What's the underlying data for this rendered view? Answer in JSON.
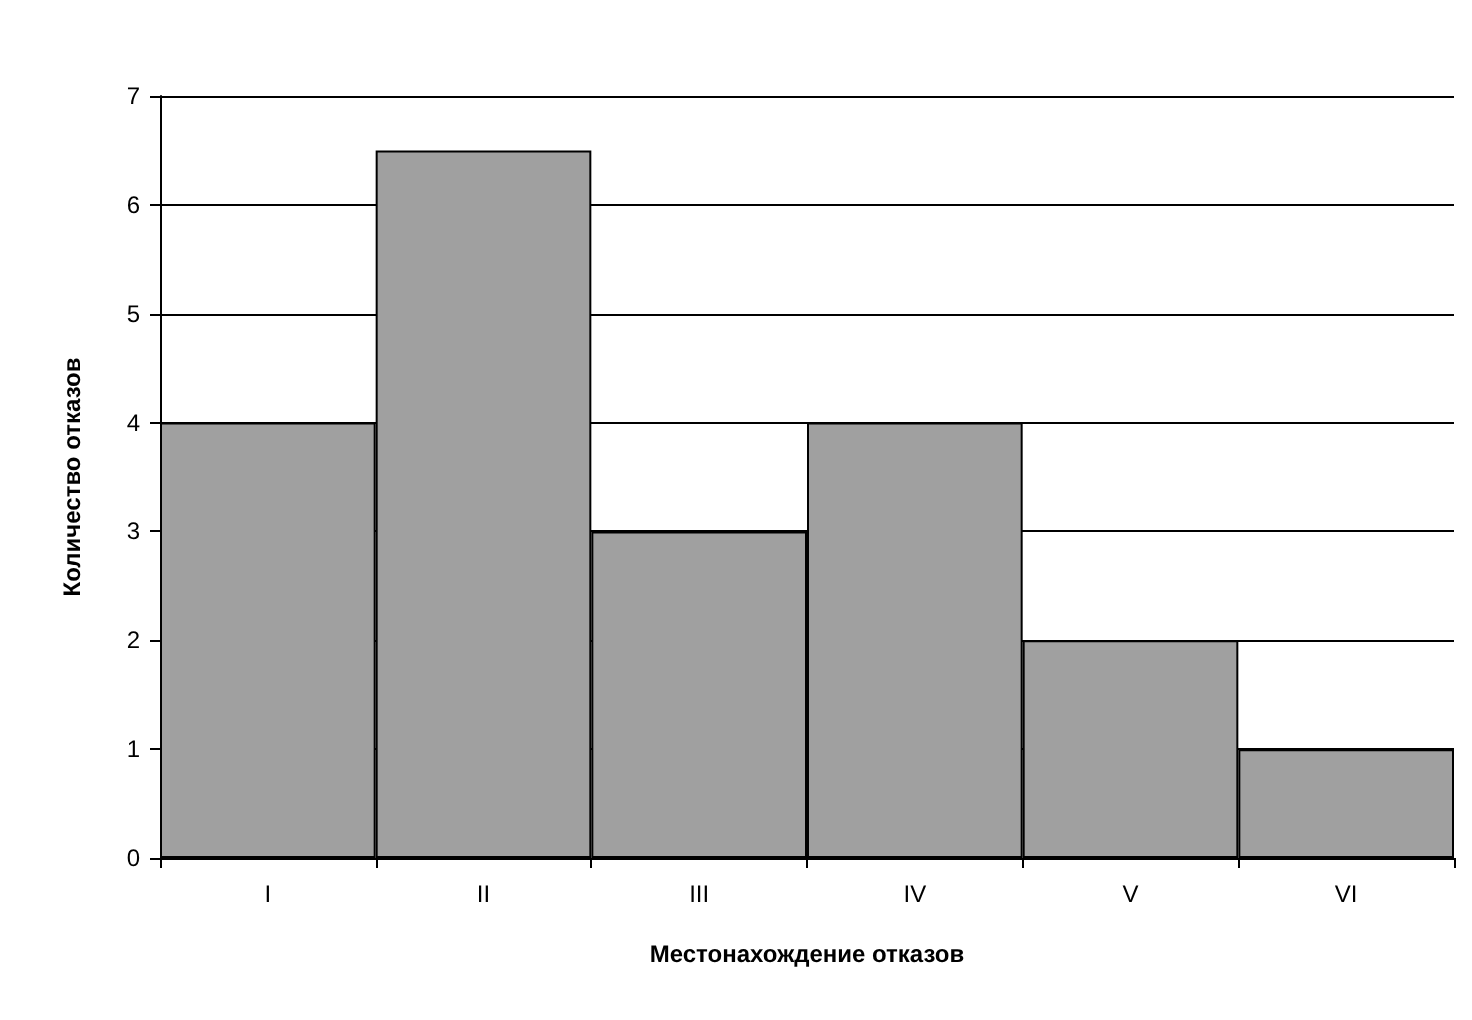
{
  "chart_data": {
    "type": "bar",
    "xlabel": "Местонахождение отказов",
    "ylabel": "Количество отказов",
    "categories": [
      "I",
      "II",
      "III",
      "IV",
      "V",
      "VI"
    ],
    "values": [
      4,
      6.5,
      3,
      4,
      2,
      1
    ],
    "color": "#a0a0a0",
    "ylim": [
      0,
      7
    ],
    "yticks": [
      0,
      1,
      2,
      3,
      4,
      5,
      6,
      7
    ],
    "grid": "y"
  }
}
